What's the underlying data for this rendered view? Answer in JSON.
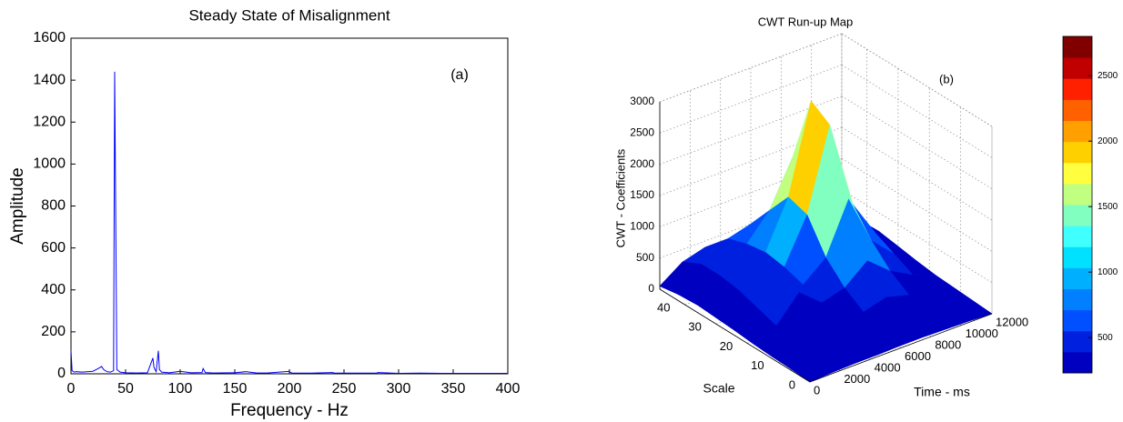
{
  "chart_data": [
    {
      "type": "line",
      "title": "Steady State of Misalignment",
      "annotation": "(a)",
      "xlabel": "Frequency - Hz",
      "ylabel": "Amplitude",
      "color": "#0000ff",
      "x": [
        0,
        1,
        3,
        5,
        10,
        15,
        20,
        25,
        28,
        30,
        33,
        36,
        39,
        40,
        41,
        42,
        45,
        50,
        60,
        70,
        75,
        76,
        78,
        80,
        81,
        83,
        90,
        100,
        110,
        120,
        121,
        123,
        130,
        150,
        160,
        170,
        180,
        200,
        201,
        203,
        220,
        240,
        241,
        260,
        280,
        281,
        300,
        320,
        340,
        360,
        380,
        400
      ],
      "values": [
        110,
        15,
        8,
        10,
        8,
        10,
        12,
        25,
        35,
        20,
        10,
        8,
        15,
        1440,
        730,
        20,
        8,
        5,
        4,
        5,
        75,
        30,
        10,
        110,
        20,
        8,
        5,
        12,
        5,
        6,
        25,
        6,
        4,
        5,
        10,
        4,
        4,
        12,
        6,
        3,
        3,
        6,
        3,
        3,
        3,
        6,
        2,
        3,
        2,
        2,
        2,
        2
      ],
      "xlim": [
        0,
        400
      ],
      "ylim": [
        0,
        1600
      ],
      "xticks": [
        0,
        50,
        100,
        150,
        200,
        250,
        300,
        350,
        400
      ],
      "yticks": [
        0,
        200,
        400,
        600,
        800,
        1000,
        1200,
        1400,
        1600
      ]
    },
    {
      "type": "surface",
      "title": "CWT Run-up Map",
      "annotation": "(b)",
      "xlabel": "Time - ms",
      "ylabel": "Scale",
      "zlabel": "CWT - Coefficients",
      "x": [
        0,
        1500,
        3000,
        4500,
        6000,
        7500,
        9000,
        10500,
        12000
      ],
      "y": [
        0,
        6,
        12,
        18,
        24,
        30,
        36,
        42,
        48
      ],
      "z": [
        [
          0,
          20,
          30,
          30,
          40,
          40,
          30,
          20,
          0
        ],
        [
          20,
          60,
          80,
          80,
          100,
          120,
          90,
          60,
          20
        ],
        [
          30,
          100,
          200,
          150,
          200,
          300,
          200,
          100,
          40
        ],
        [
          50,
          200,
          600,
          300,
          400,
          700,
          400,
          200,
          60
        ],
        [
          80,
          300,
          750,
          400,
          700,
          1500,
          700,
          350,
          100
        ],
        [
          100,
          400,
          500,
          500,
          1200,
          2500,
          1100,
          500,
          150
        ],
        [
          120,
          450,
          500,
          550,
          1300,
          2700,
          1200,
          550,
          200
        ],
        [
          100,
          450,
          500,
          500,
          900,
          1600,
          900,
          500,
          150
        ],
        [
          50,
          300,
          400,
          400,
          500,
          600,
          500,
          350,
          100
        ]
      ],
      "xlim": [
        0,
        12000
      ],
      "ylim": [
        0,
        48
      ],
      "zlim": [
        0,
        3000
      ],
      "xticks": [
        0,
        2000,
        4000,
        6000,
        8000,
        10000,
        12000
      ],
      "yticks": [
        0,
        10,
        20,
        30,
        40
      ],
      "zticks": [
        0,
        500,
        1000,
        1500,
        2000,
        2500,
        3000
      ],
      "clim": [
        230,
        2800
      ],
      "cticks": [
        500,
        1000,
        1500,
        2000,
        2500
      ],
      "colormap": [
        "#0000c0",
        "#0020e0",
        "#0050ff",
        "#0080ff",
        "#00b0ff",
        "#00e0ff",
        "#40ffff",
        "#80ffc0",
        "#c0ff80",
        "#ffff40",
        "#ffd000",
        "#ffa000",
        "#ff6000",
        "#ff2000",
        "#c00000",
        "#800000"
      ]
    }
  ]
}
